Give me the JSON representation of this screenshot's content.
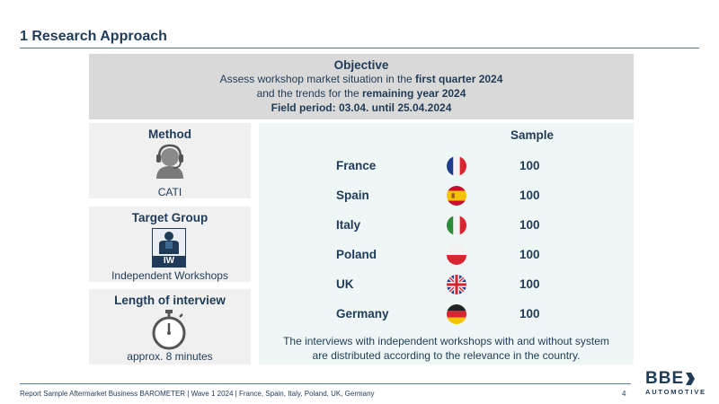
{
  "title": "1 Research Approach",
  "objective": {
    "heading": "Objective",
    "line1_plain": "Assess workshop market situation in the ",
    "line1_bold": "first quarter 2024",
    "line2_plain": "and the trends for the ",
    "line2_bold": "remaining year 2024",
    "line3": "Field period: 03.04. until 25.04.2024"
  },
  "method": {
    "heading": "Method",
    "icon": "headset-operator-icon",
    "value": "CATI"
  },
  "target_group": {
    "heading": "Target Group",
    "icon": "worker-icon",
    "badge": "IW",
    "value": "Independent Workshops"
  },
  "length": {
    "heading": "Length of interview",
    "icon": "stopwatch-icon",
    "value": "approx. 8 minutes"
  },
  "sample": {
    "heading": "Sample",
    "rows": [
      {
        "country": "France",
        "flag": "france-flag-icon",
        "value": "100"
      },
      {
        "country": "Spain",
        "flag": "spain-flag-icon",
        "value": "100"
      },
      {
        "country": "Italy",
        "flag": "italy-flag-icon",
        "value": "100"
      },
      {
        "country": "Poland",
        "flag": "poland-flag-icon",
        "value": "100"
      },
      {
        "country": "UK",
        "flag": "uk-flag-icon",
        "value": "100"
      },
      {
        "country": "Germany",
        "flag": "germany-flag-icon",
        "value": "100"
      }
    ],
    "note_line1": "The interviews with independent workshops with and without system",
    "note_line2": "are distributed according to the relevance in the country."
  },
  "footer": {
    "text": "Report Sample Aftermarket Business BAROMETER | Wave 1 2024 | France, Spain, Italy, Poland, UK, Germany",
    "page": "4"
  },
  "logo": {
    "brand": "BBE",
    "sub": "AUTOMOTIVE"
  },
  "colors": {
    "text": "#1f3b57",
    "objective_bg": "#d9d9d9",
    "box_bg": "#f0f0f0",
    "sample_bg": "#eef6f6",
    "rule": "#4f7fa0",
    "badge": "#1f3b57"
  }
}
